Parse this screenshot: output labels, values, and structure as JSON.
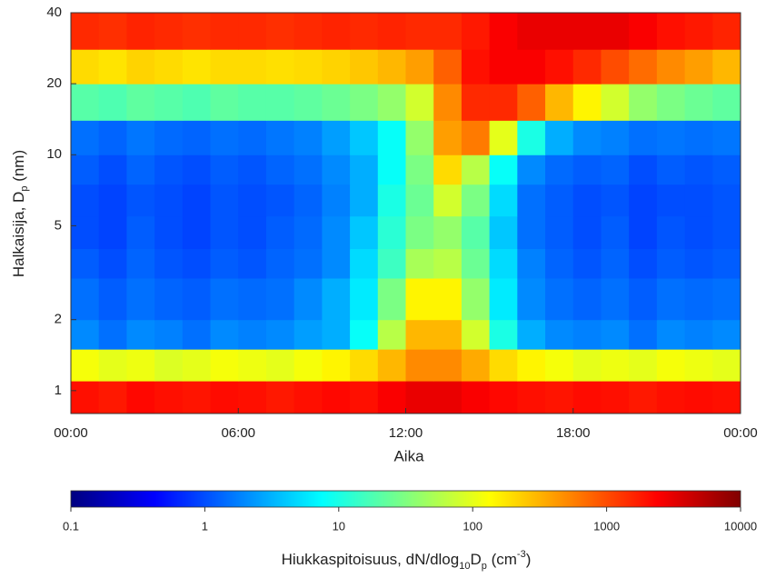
{
  "chart_data": {
    "type": "heatmap",
    "xlabel": "Aika",
    "ylabel_parts": [
      "Halkaisija, D",
      "p",
      " (nm)"
    ],
    "x_bins": [
      0,
      1,
      2,
      3,
      4,
      5,
      6,
      7,
      8,
      9,
      10,
      11,
      12,
      13,
      14,
      15,
      16,
      17,
      18,
      19,
      20,
      21,
      22,
      23,
      24
    ],
    "y_bins": [
      0.8,
      1.1,
      1.5,
      2,
      3,
      4,
      5.5,
      7.5,
      10,
      14,
      20,
      28,
      40
    ],
    "xlim": [
      0,
      24
    ],
    "ylim": [
      0.8,
      40
    ],
    "ylog": true,
    "xticks": [
      {
        "value": 0,
        "label": "00:00"
      },
      {
        "value": 6,
        "label": "06:00"
      },
      {
        "value": 12,
        "label": "12:00"
      },
      {
        "value": 18,
        "label": "18:00"
      },
      {
        "value": 24,
        "label": "00:00"
      }
    ],
    "yticks": [
      1,
      2,
      5,
      10,
      20,
      40
    ],
    "values": [
      [
        2000,
        1800,
        2200,
        2000,
        1900,
        2100,
        2000,
        1800,
        2000,
        2200,
        2000,
        2500,
        3000,
        3000,
        2500,
        2200,
        2000,
        1900,
        2100,
        2000,
        1800,
        2000,
        2100,
        2000
      ],
      [
        120,
        100,
        110,
        90,
        100,
        120,
        110,
        100,
        120,
        150,
        200,
        300,
        500,
        500,
        350,
        200,
        150,
        120,
        100,
        110,
        100,
        120,
        110,
        100
      ],
      [
        2,
        1.5,
        2,
        1.8,
        1.5,
        2,
        1.8,
        2,
        2.5,
        3,
        8,
        60,
        300,
        300,
        80,
        10,
        3,
        2,
        1.8,
        2,
        1.5,
        2,
        1.8,
        2
      ],
      [
        1.5,
        1.2,
        1.5,
        1.3,
        1.2,
        1.5,
        1.4,
        1.5,
        2,
        3,
        6,
        30,
        150,
        150,
        40,
        6,
        2,
        1.5,
        1.3,
        1.5,
        1.2,
        1.5,
        1.4,
        1.5
      ],
      [
        1.2,
        1,
        1.3,
        1.1,
        1,
        1.2,
        1.1,
        1.3,
        1.5,
        2,
        5,
        15,
        50,
        60,
        25,
        5,
        1.8,
        1.3,
        1.1,
        1.3,
        1,
        1.2,
        1.1,
        1.2
      ],
      [
        1,
        0.9,
        1.2,
        1,
        0.9,
        1.1,
        1,
        1.2,
        1.4,
        2,
        4,
        12,
        30,
        40,
        20,
        4,
        1.5,
        1.2,
        1,
        1.2,
        0.9,
        1.1,
        1,
        1.1
      ],
      [
        1,
        0.9,
        1.1,
        1,
        0.9,
        1.1,
        1,
        1.1,
        1.3,
        1.8,
        3,
        10,
        25,
        80,
        30,
        5,
        1.5,
        1.2,
        1,
        1.1,
        0.9,
        1,
        1,
        1.1
      ],
      [
        1.2,
        1,
        1.3,
        1.1,
        1,
        1.2,
        1.1,
        1.3,
        1.5,
        2,
        3,
        8,
        30,
        200,
        60,
        8,
        2,
        1.4,
        1.2,
        1.3,
        1,
        1.2,
        1.1,
        1.2
      ],
      [
        1.5,
        1.3,
        1.6,
        1.4,
        1.3,
        1.5,
        1.4,
        1.6,
        1.8,
        2.5,
        4,
        8,
        40,
        400,
        600,
        100,
        10,
        3,
        2,
        1.8,
        1.5,
        1.6,
        1.5,
        1.6
      ],
      [
        20,
        18,
        22,
        20,
        18,
        22,
        20,
        20,
        22,
        25,
        30,
        40,
        80,
        500,
        1500,
        1500,
        800,
        300,
        150,
        80,
        40,
        30,
        25,
        22
      ],
      [
        200,
        180,
        220,
        200,
        180,
        200,
        200,
        190,
        200,
        220,
        250,
        300,
        400,
        800,
        2000,
        2500,
        2500,
        2000,
        1500,
        1000,
        700,
        500,
        400,
        300
      ],
      [
        1500,
        1400,
        1600,
        1500,
        1400,
        1500,
        1500,
        1400,
        1500,
        1600,
        1500,
        1600,
        1500,
        1500,
        1800,
        2500,
        3000,
        3000,
        3000,
        3000,
        2500,
        2000,
        1800,
        1600
      ]
    ],
    "colormap": "jet",
    "clim": [
      0.1,
      10000
    ],
    "clog": true,
    "cticks": [
      0.1,
      1,
      10,
      100,
      1000,
      10000
    ],
    "clabel_parts": [
      "Hiukkaspitoisuus, dN/dlog",
      "10",
      "D",
      "p",
      " (cm",
      "-3",
      ")"
    ]
  }
}
